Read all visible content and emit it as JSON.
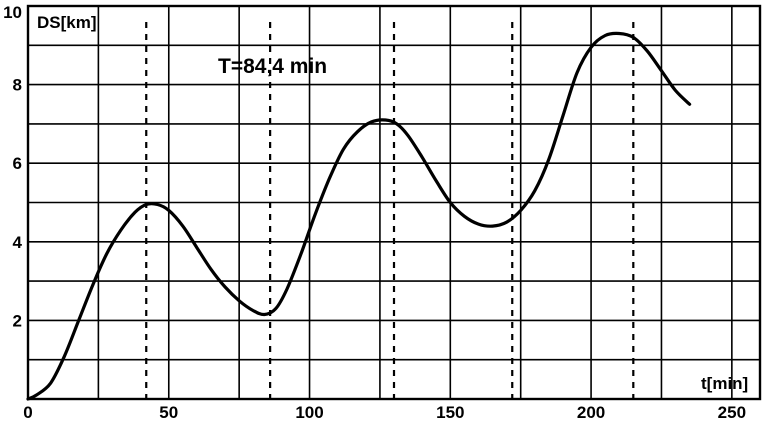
{
  "chart_data": {
    "type": "line",
    "title": "",
    "ylabel": "DS[km]",
    "xlabel": "t[min]",
    "xlim": [
      0,
      260
    ],
    "ylim": [
      0,
      10
    ],
    "x_ticks": [
      0,
      50,
      100,
      150,
      200,
      250
    ],
    "x_tick_labels": [
      "0",
      "50",
      "100",
      "150",
      "200",
      "250"
    ],
    "y_ticks": [
      2,
      4,
      6,
      8,
      10
    ],
    "y_tick_labels": [
      "2",
      "4",
      "6",
      "8",
      "10"
    ],
    "grid": true,
    "annotation": "T=84,4 min",
    "marker_lines_x": [
      42,
      86,
      130,
      172,
      215
    ],
    "series": [
      {
        "x": [
          0,
          3,
          8,
          13,
          18,
          23,
          28,
          33,
          38,
          42,
          46,
          50,
          55,
          60,
          65,
          70,
          75,
          80,
          84,
          88,
          92,
          97,
          102,
          107,
          112,
          117,
          122,
          127,
          131,
          135,
          140,
          145,
          150,
          155,
          160,
          165,
          170,
          175,
          180,
          185,
          190,
          195,
          200,
          205,
          210,
          215,
          220,
          225,
          230,
          235
        ],
        "y": [
          0,
          0.1,
          0.4,
          1.1,
          2.0,
          2.9,
          3.7,
          4.3,
          4.75,
          4.95,
          4.95,
          4.8,
          4.4,
          3.85,
          3.3,
          2.85,
          2.5,
          2.25,
          2.15,
          2.3,
          2.8,
          3.7,
          4.7,
          5.6,
          6.35,
          6.8,
          7.05,
          7.1,
          7.0,
          6.7,
          6.15,
          5.55,
          5.0,
          4.65,
          4.45,
          4.4,
          4.5,
          4.8,
          5.3,
          6.1,
          7.2,
          8.3,
          8.95,
          9.25,
          9.3,
          9.2,
          8.85,
          8.35,
          7.85,
          7.5
        ]
      }
    ]
  }
}
